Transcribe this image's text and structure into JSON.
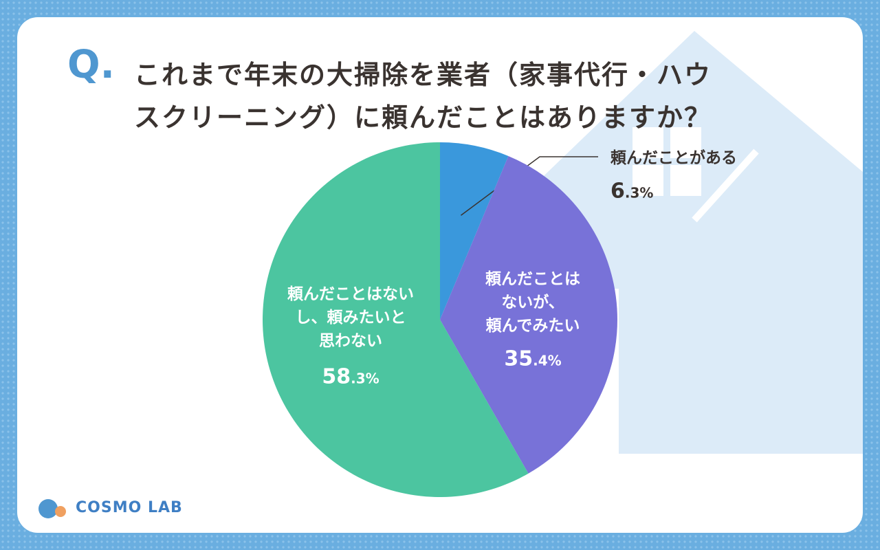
{
  "question_mark": "Q.",
  "chart_data": {
    "type": "pie",
    "title": [
      "これまで年末の大掃除を業者（家事代行・ハウ",
      "スクリーニング）に頼んだことはありますか？"
    ],
    "categories": [
      "頼んだことがある",
      "頼んだことは\nないが、\n頼んでみたい",
      "頼んだことはない\nし、頼みたいと\n思わない"
    ],
    "values": [
      6.3,
      35.4,
      58.3
    ],
    "value_labels": [
      "6.3%",
      "35.4%",
      "58.3%"
    ],
    "colors": [
      "#3a98dc",
      "#7872d8",
      "#4cc5a0"
    ]
  },
  "logo": "COSMO LAB"
}
